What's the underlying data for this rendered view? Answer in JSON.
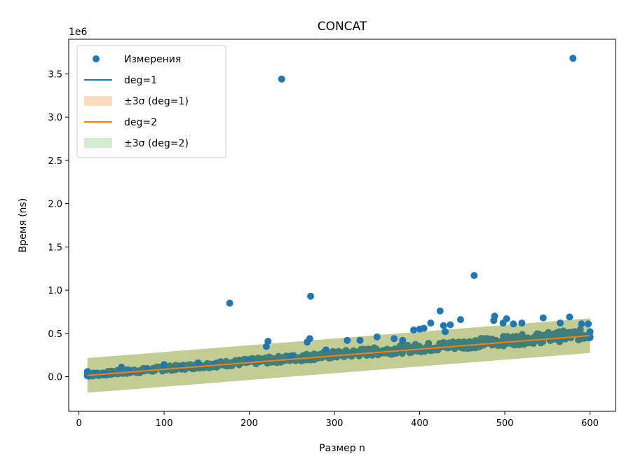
{
  "chart_data": {
    "type": "scatter",
    "title": "CONCAT",
    "xlabel": "Размер n",
    "ylabel": "Время (ns)",
    "y_scale_label": "1e6",
    "xlim": [
      -12,
      630
    ],
    "ylim": [
      -400000,
      3900000
    ],
    "x_ticks": [
      0,
      100,
      200,
      300,
      400,
      500,
      600
    ],
    "x_tick_labels": [
      "0",
      "100",
      "200",
      "300",
      "400",
      "500",
      "600"
    ],
    "y_ticks": [
      0,
      500000,
      1000000,
      1500000,
      2000000,
      2500000,
      3000000,
      3500000
    ],
    "y_tick_labels": [
      "0.0",
      "0.5",
      "1.0",
      "1.5",
      "2.0",
      "2.5",
      "3.0",
      "3.5"
    ],
    "grid": false,
    "legend_position": "top-left",
    "legend": [
      {
        "label": "Измерения",
        "kind": "marker",
        "color": "#1f77b4"
      },
      {
        "label": "deg=1",
        "kind": "line",
        "color": "#1f77b4"
      },
      {
        "label": "±3σ (deg=1)",
        "kind": "patch",
        "color": "#ffdcbf"
      },
      {
        "label": "deg=2",
        "kind": "line",
        "color": "#ff7f0e"
      },
      {
        "label": "±3σ (deg=2)",
        "kind": "patch",
        "color": "#d3ebcf"
      }
    ],
    "series": [
      {
        "name": "Измерения",
        "kind": "scatter",
        "color": "#1f77b4",
        "points": [
          [
            10,
            10000
          ],
          [
            10,
            60000
          ],
          [
            20,
            40000
          ],
          [
            30,
            30000
          ],
          [
            50,
            110000
          ],
          [
            60,
            60000
          ],
          [
            80,
            90000
          ],
          [
            100,
            140000
          ],
          [
            120,
            110000
          ],
          [
            140,
            160000
          ],
          [
            160,
            150000
          ],
          [
            177,
            850000
          ],
          [
            200,
            190000
          ],
          [
            220,
            350000
          ],
          [
            222,
            410000
          ],
          [
            238,
            3440000
          ],
          [
            250,
            240000
          ],
          [
            268,
            400000
          ],
          [
            271,
            440000
          ],
          [
            272,
            930000
          ],
          [
            290,
            310000
          ],
          [
            315,
            420000
          ],
          [
            330,
            420000
          ],
          [
            350,
            460000
          ],
          [
            370,
            440000
          ],
          [
            380,
            420000
          ],
          [
            393,
            540000
          ],
          [
            400,
            550000
          ],
          [
            405,
            560000
          ],
          [
            413,
            620000
          ],
          [
            424,
            760000
          ],
          [
            428,
            590000
          ],
          [
            430,
            520000
          ],
          [
            436,
            600000
          ],
          [
            448,
            660000
          ],
          [
            464,
            1170000
          ],
          [
            487,
            650000
          ],
          [
            488,
            700000
          ],
          [
            498,
            620000
          ],
          [
            502,
            670000
          ],
          [
            510,
            610000
          ],
          [
            520,
            620000
          ],
          [
            545,
            680000
          ],
          [
            565,
            620000
          ],
          [
            576,
            690000
          ],
          [
            580,
            3680000
          ],
          [
            590,
            610000
          ],
          [
            598,
            610000
          ],
          [
            600,
            460000
          ],
          [
            600,
            520000
          ]
        ],
        "band_points": true
      },
      {
        "name": "deg=1",
        "kind": "line",
        "color": "#1f77b4",
        "x": [
          10,
          600
        ],
        "y": [
          15000,
          475000
        ]
      },
      {
        "name": "±3σ (deg=1)",
        "kind": "band",
        "color": "#ffdcbf",
        "x": [
          10,
          600
        ],
        "lower": [
          -185000,
          275000
        ],
        "upper": [
          215000,
          675000
        ]
      },
      {
        "name": "deg=2",
        "kind": "line",
        "color": "#ff7f0e",
        "x": [
          10,
          600
        ],
        "y": [
          15000,
          475000
        ]
      },
      {
        "name": "±3σ (deg=2)",
        "kind": "band",
        "color": "#d3ebcf",
        "x": [
          10,
          600
        ],
        "lower": [
          -185000,
          275000
        ],
        "upper": [
          215000,
          675000
        ]
      }
    ]
  }
}
